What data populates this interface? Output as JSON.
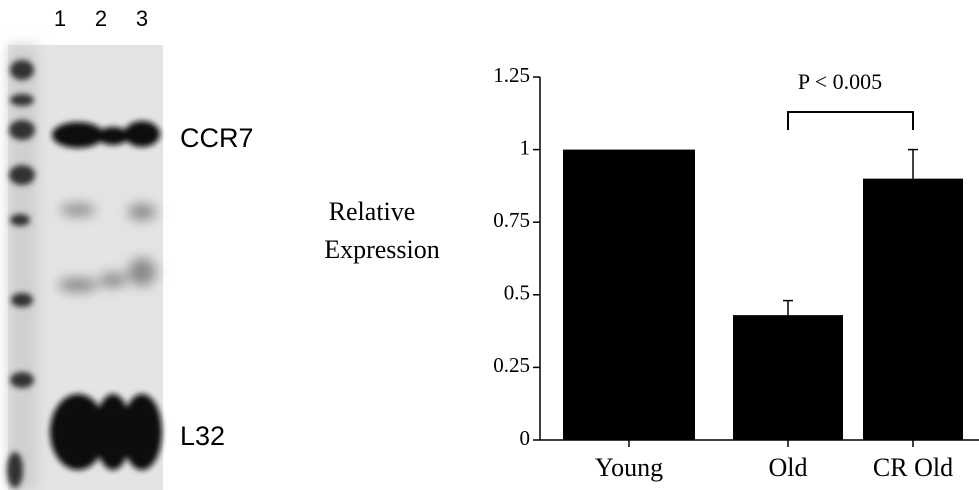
{
  "gel": {
    "lanes": [
      "1",
      "2",
      "3"
    ],
    "bands": [
      "CCR7",
      "L32"
    ]
  },
  "chart_data": {
    "type": "bar",
    "ylabel": [
      "Relative",
      "Expression"
    ],
    "categories": [
      "Young",
      "Old",
      "CR Old"
    ],
    "values": [
      1,
      0.43,
      0.9
    ],
    "errors": [
      null,
      0.05,
      0.1
    ],
    "color": "#000000",
    "ylim": [
      0,
      1.25
    ],
    "yticks": [
      0,
      0.25,
      0.5,
      0.75,
      1,
      1.25
    ],
    "annotation": "P < 0.005"
  }
}
